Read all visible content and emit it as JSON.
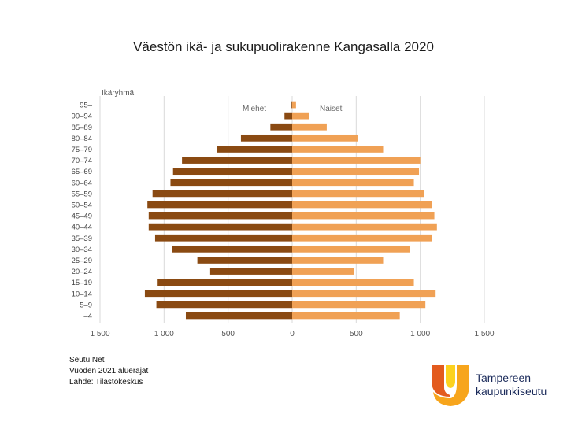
{
  "chart_data": {
    "type": "bar",
    "title": "Väestön ikä- ja sukupuolirakenne Kangasalla 2020",
    "ylabel": "Ikäryhmä",
    "xlabel": "",
    "categories": [
      "95–",
      "90–94",
      "85–89",
      "80–84",
      "75–79",
      "70–74",
      "65–69",
      "60–64",
      "55–59",
      "50–54",
      "45–49",
      "40–44",
      "35–39",
      "30–34",
      "25–29",
      "20–24",
      "15–19",
      "10–14",
      "5–9",
      "–4"
    ],
    "series": [
      {
        "name": "Miehet",
        "color": "#8a4a12",
        "values": [
          5,
          60,
          170,
          400,
          590,
          860,
          930,
          950,
          1090,
          1130,
          1120,
          1120,
          1070,
          940,
          740,
          640,
          1050,
          1150,
          1060,
          830
        ]
      },
      {
        "name": "Naiset",
        "color": "#f0a155",
        "values": [
          30,
          130,
          270,
          510,
          710,
          1000,
          990,
          950,
          1030,
          1090,
          1110,
          1130,
          1090,
          920,
          710,
          480,
          950,
          1120,
          1040,
          840
        ]
      }
    ],
    "xlim": [
      -1500,
      1500
    ],
    "xticks": [
      -1500,
      -1000,
      -500,
      0,
      500,
      1000,
      1500
    ],
    "xtick_labels": [
      "1 500",
      "1 000",
      "500",
      "0",
      "500",
      "1 000",
      "1 500"
    ],
    "grid": true,
    "legend": "top-center"
  },
  "footer": {
    "lines": [
      "Seutu.Net",
      "Vuoden 2021 aluerajat",
      "Lähde: Tilastokeskus"
    ]
  },
  "logo": {
    "line1": "Tampereen",
    "line2": "kaupunkiseutu",
    "colors": [
      "#e35b1e",
      "#f7a51c",
      "#fcd21e"
    ]
  }
}
